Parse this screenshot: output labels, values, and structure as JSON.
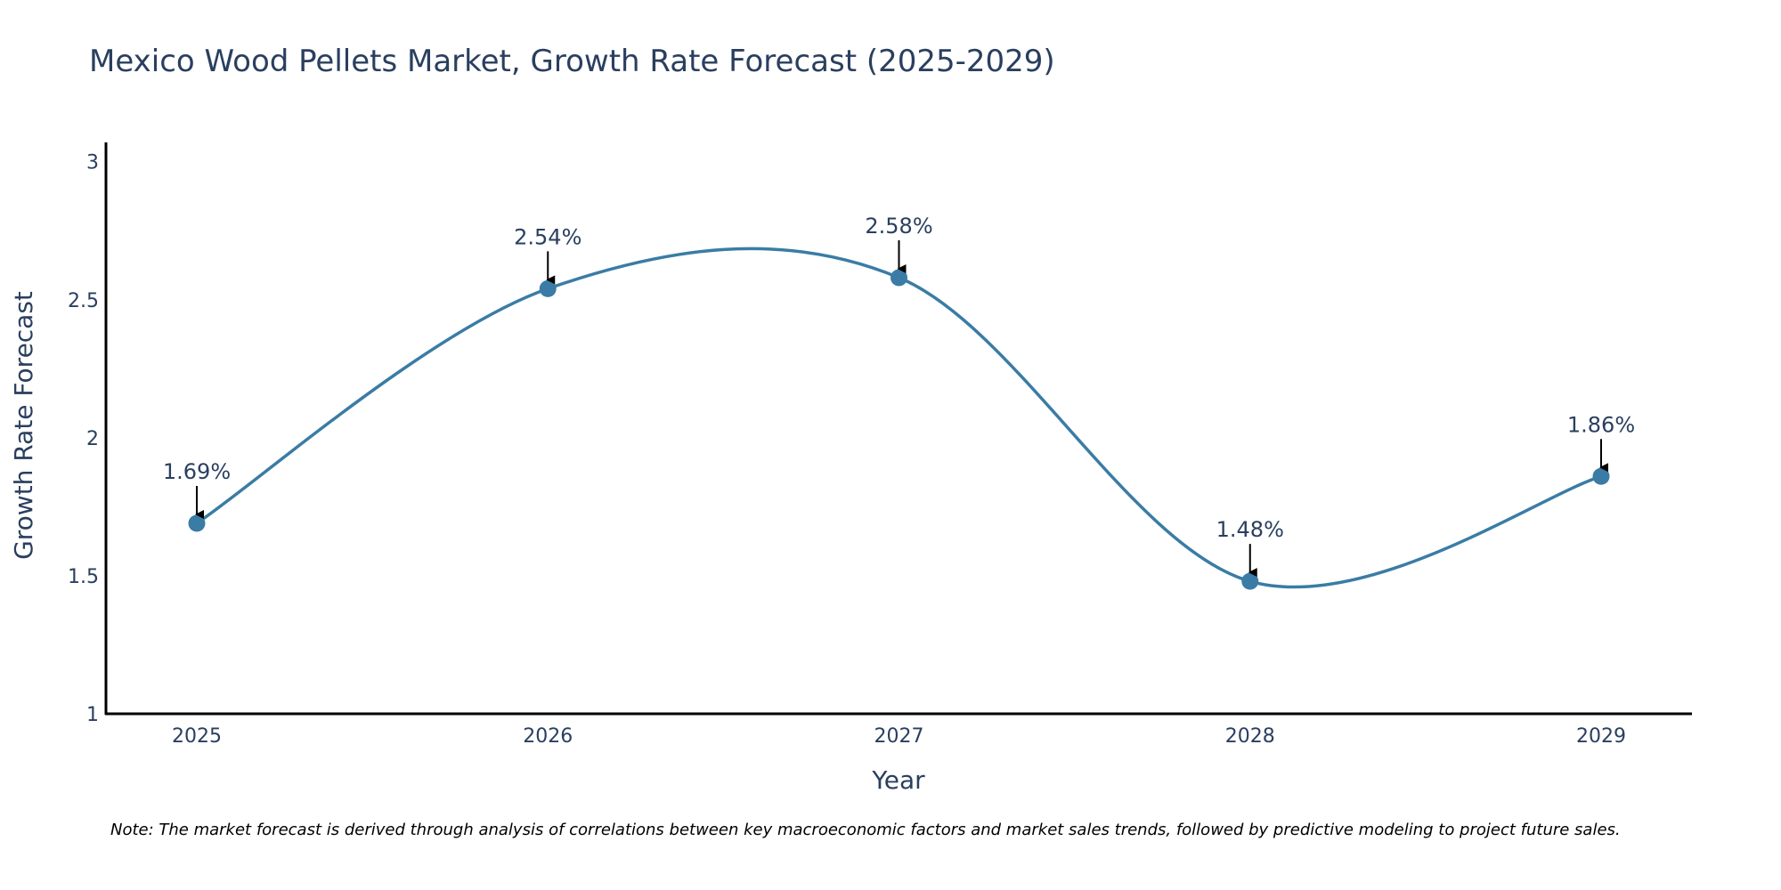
{
  "chart_data": {
    "type": "line",
    "title": "Mexico Wood Pellets Market, Growth Rate Forecast (2025-2029)",
    "xlabel": "Year",
    "ylabel": "Growth Rate Forecast",
    "categories": [
      "2025",
      "2026",
      "2027",
      "2028",
      "2029"
    ],
    "values": [
      1.69,
      2.54,
      2.58,
      1.48,
      1.86
    ],
    "data_labels": [
      "1.69%",
      "2.54%",
      "2.58%",
      "1.48%",
      "1.86%"
    ],
    "ylim": [
      1,
      3.07
    ],
    "yticks": [
      1,
      1.5,
      2,
      2.5,
      3
    ],
    "ytick_labels": [
      "1",
      "1.5",
      "2",
      "2.5",
      "3"
    ],
    "line_shape": "spline",
    "grid": false,
    "note": "Note: The market forecast is derived through analysis of correlations between key macroeconomic factors and market sales trends, followed by predictive modeling to project future sales."
  },
  "colors": {
    "line": "#3a7ca5",
    "marker": "#3a7ca5",
    "arrow": "#000000",
    "axis": "#000000",
    "text": "#2a3f5f"
  }
}
